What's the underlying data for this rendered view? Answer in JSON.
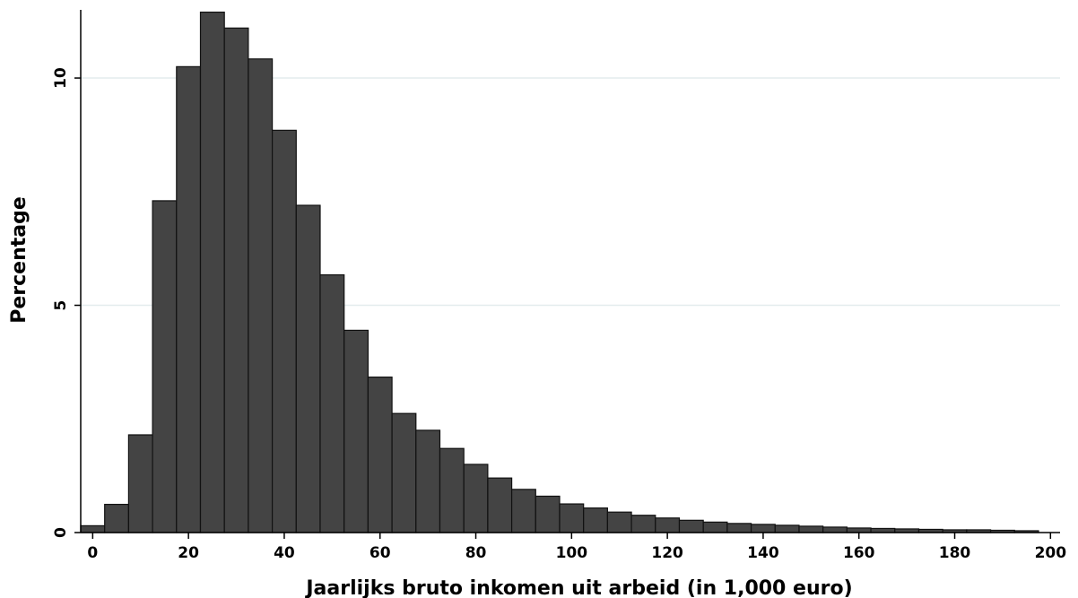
{
  "chart_data": {
    "type": "bar",
    "title": "",
    "xlabel": "Jaarlijks bruto inkomen uit arbeid (in 1,000 euro)",
    "ylabel": "Percentage",
    "xlim": [
      -2.5,
      202
    ],
    "ylim": [
      0,
      11.5
    ],
    "xticks": [
      0,
      20,
      40,
      60,
      80,
      100,
      120,
      140,
      160,
      180,
      200
    ],
    "yticks": [
      0,
      5,
      10
    ],
    "grid": "horizontal",
    "bar_width": 5,
    "bar_color": "#444444",
    "x": [
      0,
      5,
      10,
      15,
      20,
      25,
      30,
      35,
      40,
      45,
      50,
      55,
      60,
      65,
      70,
      75,
      80,
      85,
      90,
      95,
      100,
      105,
      110,
      115,
      120,
      125,
      130,
      135,
      140,
      145,
      150,
      155,
      160,
      165,
      170,
      175,
      180,
      185,
      190,
      195
    ],
    "values": [
      0.15,
      0.62,
      2.15,
      7.3,
      10.25,
      11.45,
      11.1,
      10.42,
      8.85,
      7.2,
      5.67,
      4.45,
      3.42,
      2.62,
      2.25,
      1.85,
      1.5,
      1.2,
      0.95,
      0.8,
      0.63,
      0.54,
      0.45,
      0.38,
      0.32,
      0.27,
      0.23,
      0.2,
      0.18,
      0.16,
      0.14,
      0.12,
      0.1,
      0.09,
      0.08,
      0.07,
      0.06,
      0.06,
      0.05,
      0.04
    ]
  }
}
